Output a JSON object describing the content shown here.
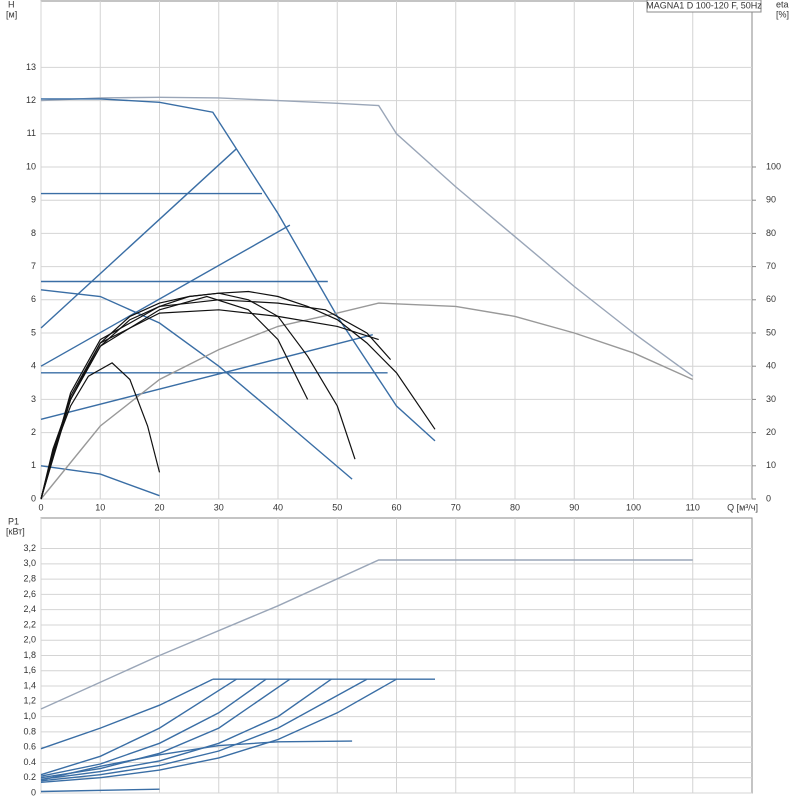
{
  "chart_data": [
    {
      "type": "line",
      "title": "MAGNA1 D 100-120 F, 50Hz",
      "y_label": "H",
      "y_unit": "[м]",
      "y2_label": "eta",
      "y2_unit": "[%]",
      "x_label": "Q [м³/ч]",
      "xlim": [
        0,
        120
      ],
      "xticks": [
        0,
        10,
        20,
        30,
        40,
        50,
        60,
        70,
        80,
        90,
        100,
        110
      ],
      "ylim": [
        0,
        15
      ],
      "yticks": [
        0,
        1,
        2,
        3,
        4,
        5,
        6,
        7,
        8,
        9,
        10,
        11,
        12,
        13
      ],
      "y2lim": [
        0,
        150
      ],
      "y2ticks": [
        0,
        10,
        20,
        30,
        40,
        50,
        60,
        70,
        80,
        90,
        100
      ],
      "grid": true,
      "series": [
        {
          "color": "#9aa6b8",
          "x": [
            0,
            10,
            20,
            30,
            40,
            50,
            57,
            60,
            70,
            80,
            90,
            100,
            110
          ],
          "values": [
            12.0,
            12.08,
            12.1,
            12.08,
            12.0,
            11.92,
            11.85,
            11.0,
            9.4,
            7.9,
            6.4,
            5.0,
            3.7
          ]
        },
        {
          "color": "#3a6ea5",
          "x": [
            0,
            10,
            20,
            29,
            40,
            50,
            60,
            66.5
          ],
          "values": [
            12.05,
            12.05,
            11.95,
            11.65,
            8.6,
            5.5,
            2.8,
            1.75
          ]
        },
        {
          "color": "#3a6ea5",
          "x": [
            0,
            37.3
          ],
          "values": [
            9.2,
            9.2
          ]
        },
        {
          "color": "#3a6ea5",
          "x": [
            0,
            48.4
          ],
          "values": [
            6.55,
            6.55
          ]
        },
        {
          "color": "#3a6ea5",
          "x": [
            0,
            58.5
          ],
          "values": [
            3.8,
            3.8
          ]
        },
        {
          "color": "#3a6ea5",
          "x": [
            0,
            33
          ],
          "values": [
            5.15,
            10.55
          ]
        },
        {
          "color": "#3a6ea5",
          "x": [
            0,
            42
          ],
          "values": [
            4.0,
            8.25
          ]
        },
        {
          "color": "#3a6ea5",
          "x": [
            0,
            56
          ],
          "values": [
            2.4,
            4.95
          ]
        },
        {
          "color": "#3a6ea5",
          "x": [
            0,
            10,
            20,
            30,
            40,
            52.5
          ],
          "values": [
            6.3,
            6.1,
            5.3,
            4.0,
            2.5,
            0.6
          ]
        },
        {
          "color": "#3a6ea5",
          "x": [
            0,
            10,
            20
          ],
          "values": [
            1.0,
            0.75,
            0.1
          ]
        },
        {
          "color": "#999999",
          "axis": "y2",
          "x": [
            0,
            10,
            20,
            30,
            40,
            50,
            57,
            70,
            80,
            90,
            100,
            110
          ],
          "values": [
            0,
            22,
            36,
            45,
            52,
            56,
            59,
            58,
            55,
            50,
            44,
            36
          ]
        },
        {
          "color": "#111111",
          "axis": "y2",
          "x": [
            0,
            2,
            5,
            8,
            12,
            15,
            18,
            20
          ],
          "values": [
            0,
            14,
            28,
            37,
            41,
            36,
            22,
            8
          ]
        },
        {
          "color": "#111111",
          "axis": "y2",
          "x": [
            0,
            2,
            5,
            10,
            15,
            20,
            25,
            30,
            35,
            40,
            45,
            50,
            53
          ],
          "values": [
            0,
            15,
            30,
            47,
            55,
            59,
            61,
            62,
            60,
            55,
            43,
            28,
            12
          ]
        },
        {
          "color": "#111111",
          "axis": "y2",
          "x": [
            0,
            2,
            5,
            10,
            15,
            20,
            25,
            30,
            35,
            40,
            45,
            50,
            55,
            60,
            66.5
          ],
          "values": [
            0,
            14,
            30,
            46,
            54,
            58,
            61,
            62,
            62.5,
            61,
            58,
            54,
            47,
            38,
            21
          ]
        },
        {
          "color": "#111111",
          "axis": "y2",
          "x": [
            0,
            5,
            10,
            20,
            30,
            40,
            48,
            55,
            59
          ],
          "values": [
            0,
            32,
            48,
            58,
            60,
            59,
            57,
            50,
            42
          ]
        },
        {
          "color": "#111111",
          "axis": "y2",
          "x": [
            0,
            5,
            10,
            20,
            28,
            35,
            40,
            45
          ],
          "values": [
            0,
            30,
            46,
            57,
            61,
            57,
            48,
            30
          ]
        },
        {
          "color": "#111111",
          "axis": "y2",
          "x": [
            0,
            5,
            10,
            20,
            30,
            40,
            50,
            57
          ],
          "values": [
            0,
            31,
            47,
            56,
            57,
            55,
            52,
            48
          ]
        }
      ]
    },
    {
      "type": "line",
      "y_label": "P1",
      "y_unit": "[кВт]",
      "xlim": [
        0,
        120
      ],
      "xticks": [
        0,
        10,
        20,
        30,
        40,
        50,
        60,
        70,
        80,
        90,
        100,
        110
      ],
      "ylim": [
        0,
        3.6
      ],
      "yticks": [
        0,
        0.2,
        0.4,
        0.6,
        0.8,
        {
          "value": 1.0,
          "label": "1,0"
        },
        {
          "value": 1.2,
          "label": "1,2"
        },
        {
          "value": 1.4,
          "label": "1,4"
        },
        {
          "value": 1.6,
          "label": "1,6"
        },
        {
          "value": 1.8,
          "label": "1,8"
        },
        {
          "value": 2.0,
          "label": "2,0"
        },
        {
          "value": 2.2,
          "label": "2,2"
        },
        {
          "value": 2.4,
          "label": "2,4"
        },
        {
          "value": 2.6,
          "label": "2,6"
        },
        {
          "value": 2.8,
          "label": "2,8"
        },
        {
          "value": 3.0,
          "label": "3,0"
        },
        {
          "value": 3.2,
          "label": "3,2"
        }
      ],
      "grid": true,
      "series": [
        {
          "color": "#9aa6b8",
          "x": [
            0,
            20,
            40,
            57,
            110
          ],
          "values": [
            1.1,
            1.8,
            2.45,
            3.05,
            3.05
          ]
        },
        {
          "color": "#3a6ea5",
          "x": [
            29,
            66.5
          ],
          "values": [
            1.49,
            1.49
          ]
        },
        {
          "color": "#3a6ea5",
          "x": [
            0,
            10,
            20,
            29
          ],
          "values": [
            0.58,
            0.85,
            1.15,
            1.49
          ]
        },
        {
          "color": "#3a6ea5",
          "x": [
            0,
            10,
            20,
            33
          ],
          "values": [
            0.24,
            0.48,
            0.85,
            1.49
          ]
        },
        {
          "color": "#3a6ea5",
          "x": [
            0,
            10,
            20,
            30,
            38
          ],
          "values": [
            0.22,
            0.38,
            0.65,
            1.05,
            1.49
          ]
        },
        {
          "color": "#3a6ea5",
          "x": [
            0,
            10,
            20,
            30,
            42
          ],
          "values": [
            0.2,
            0.32,
            0.52,
            0.85,
            1.49
          ]
        },
        {
          "color": "#3a6ea5",
          "x": [
            0,
            10,
            20,
            30,
            40,
            49
          ],
          "values": [
            0.18,
            0.28,
            0.42,
            0.65,
            1.0,
            1.49
          ]
        },
        {
          "color": "#3a6ea5",
          "x": [
            0,
            10,
            20,
            30,
            40,
            55
          ],
          "values": [
            0.16,
            0.24,
            0.36,
            0.55,
            0.85,
            1.49
          ]
        },
        {
          "color": "#3a6ea5",
          "x": [
            0,
            10,
            20,
            30,
            40,
            50,
            60
          ],
          "values": [
            0.14,
            0.2,
            0.3,
            0.46,
            0.7,
            1.05,
            1.49
          ]
        },
        {
          "color": "#3a6ea5",
          "x": [
            0,
            10,
            20,
            30,
            40,
            52.5
          ],
          "values": [
            0.17,
            0.35,
            0.5,
            0.62,
            0.67,
            0.68
          ]
        },
        {
          "color": "#3a6ea5",
          "x": [
            0,
            20
          ],
          "values": [
            0.02,
            0.05
          ]
        }
      ]
    }
  ]
}
